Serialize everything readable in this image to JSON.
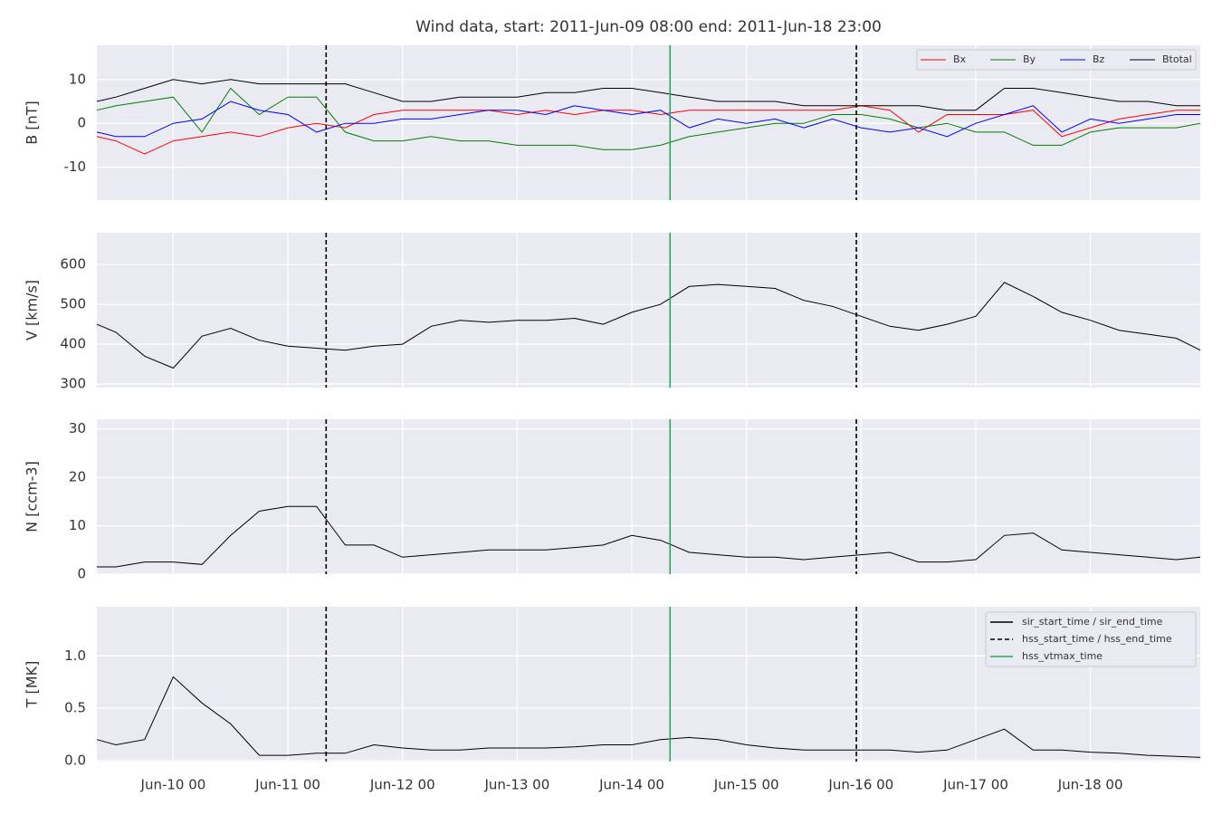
{
  "chart_data": [
    {
      "type": "line",
      "title": "Wind data, start: 2011-Jun-09 08:00  end: 2011-Jun-18 23:00",
      "ylabel": "B [nT]",
      "x": [
        "Jun-09 08",
        "Jun-09 12",
        "Jun-09 18",
        "Jun-10 00",
        "Jun-10 06",
        "Jun-10 12",
        "Jun-10 18",
        "Jun-11 00",
        "Jun-11 06",
        "Jun-11 12",
        "Jun-11 18",
        "Jun-12 00",
        "Jun-12 06",
        "Jun-12 12",
        "Jun-12 18",
        "Jun-13 00",
        "Jun-13 06",
        "Jun-13 12",
        "Jun-13 18",
        "Jun-14 00",
        "Jun-14 06",
        "Jun-14 12",
        "Jun-14 18",
        "Jun-15 00",
        "Jun-15 06",
        "Jun-15 12",
        "Jun-15 18",
        "Jun-16 00",
        "Jun-16 06",
        "Jun-16 12",
        "Jun-16 18",
        "Jun-17 00",
        "Jun-17 06",
        "Jun-17 12",
        "Jun-17 18",
        "Jun-18 00",
        "Jun-18 06",
        "Jun-18 12",
        "Jun-18 18",
        "Jun-18 23"
      ],
      "xlim": [
        "Jun-09 08",
        "Jun-18 23"
      ],
      "ylim": [
        -17.5,
        17.8
      ],
      "yticks": [
        -10,
        0,
        10
      ],
      "grid": true,
      "legend": "upper right",
      "series": [
        {
          "name": "Bx",
          "color": "#ff0000",
          "values": [
            -3,
            -4,
            -7,
            -4,
            -3,
            -2,
            -3,
            -1,
            0,
            -1,
            2,
            3,
            3,
            3,
            3,
            2,
            3,
            2,
            3,
            3,
            2,
            3,
            3,
            3,
            3,
            3,
            3,
            4,
            3,
            -2,
            2,
            2,
            2,
            3,
            -3,
            -1,
            1,
            2,
            3,
            3
          ]
        },
        {
          "name": "By",
          "color": "#008000",
          "values": [
            3,
            4,
            5,
            6,
            -2,
            8,
            2,
            6,
            6,
            -2,
            -4,
            -4,
            -3,
            -4,
            -4,
            -5,
            -5,
            -5,
            -6,
            -6,
            -5,
            -3,
            -2,
            -1,
            0,
            0,
            2,
            2,
            1,
            -1,
            0,
            -2,
            -2,
            -5,
            -5,
            -2,
            -1,
            -1,
            -1,
            0
          ]
        },
        {
          "name": "Bz",
          "color": "#0000ff",
          "values": [
            -2,
            -3,
            -3,
            0,
            1,
            5,
            3,
            2,
            -2,
            0,
            0,
            1,
            1,
            2,
            3,
            3,
            2,
            4,
            3,
            2,
            3,
            -1,
            1,
            0,
            1,
            -1,
            1,
            -1,
            -2,
            -1,
            -3,
            0,
            2,
            4,
            -2,
            1,
            0,
            1,
            2,
            2
          ]
        },
        {
          "name": "Btotal",
          "color": "#000000",
          "values": [
            5,
            6,
            8,
            10,
            9,
            10,
            9,
            9,
            9,
            9,
            7,
            5,
            5,
            6,
            6,
            6,
            7,
            7,
            8,
            8,
            7,
            6,
            5,
            5,
            5,
            4,
            4,
            4,
            4,
            4,
            3,
            3,
            8,
            8,
            7,
            6,
            5,
            5,
            4,
            4
          ]
        }
      ]
    },
    {
      "type": "line",
      "ylabel": "V [km/s]",
      "x": [
        "Jun-09 08",
        "Jun-09 12",
        "Jun-09 18",
        "Jun-10 00",
        "Jun-10 06",
        "Jun-10 12",
        "Jun-10 18",
        "Jun-11 00",
        "Jun-11 06",
        "Jun-11 12",
        "Jun-11 18",
        "Jun-12 00",
        "Jun-12 06",
        "Jun-12 12",
        "Jun-12 18",
        "Jun-13 00",
        "Jun-13 06",
        "Jun-13 12",
        "Jun-13 18",
        "Jun-14 00",
        "Jun-14 06",
        "Jun-14 12",
        "Jun-14 18",
        "Jun-15 00",
        "Jun-15 06",
        "Jun-15 12",
        "Jun-15 18",
        "Jun-16 00",
        "Jun-16 06",
        "Jun-16 12",
        "Jun-16 18",
        "Jun-17 00",
        "Jun-17 06",
        "Jun-17 12",
        "Jun-17 18",
        "Jun-18 00",
        "Jun-18 06",
        "Jun-18 12",
        "Jun-18 18",
        "Jun-18 23"
      ],
      "xlim": [
        "Jun-09 08",
        "Jun-18 23"
      ],
      "ylim": [
        291,
        680
      ],
      "yticks": [
        300,
        400,
        500,
        600
      ],
      "grid": true,
      "series": [
        {
          "color": "#000000",
          "values": [
            450,
            430,
            370,
            340,
            420,
            440,
            410,
            395,
            390,
            385,
            395,
            400,
            445,
            460,
            455,
            460,
            460,
            465,
            450,
            480,
            500,
            545,
            550,
            545,
            540,
            510,
            495,
            470,
            445,
            435,
            450,
            470,
            555,
            520,
            480,
            460,
            435,
            425,
            415,
            385
          ]
        }
      ]
    },
    {
      "type": "line",
      "ylabel": "N [ccm-3]",
      "x": [
        "Jun-09 08",
        "Jun-09 12",
        "Jun-09 18",
        "Jun-10 00",
        "Jun-10 06",
        "Jun-10 12",
        "Jun-10 18",
        "Jun-11 00",
        "Jun-11 06",
        "Jun-11 12",
        "Jun-11 18",
        "Jun-12 00",
        "Jun-12 06",
        "Jun-12 12",
        "Jun-12 18",
        "Jun-13 00",
        "Jun-13 06",
        "Jun-13 12",
        "Jun-13 18",
        "Jun-14 00",
        "Jun-14 06",
        "Jun-14 12",
        "Jun-14 18",
        "Jun-15 00",
        "Jun-15 06",
        "Jun-15 12",
        "Jun-15 18",
        "Jun-16 00",
        "Jun-16 06",
        "Jun-16 12",
        "Jun-16 18",
        "Jun-17 00",
        "Jun-17 06",
        "Jun-17 12",
        "Jun-17 18",
        "Jun-18 00",
        "Jun-18 06",
        "Jun-18 12",
        "Jun-18 18",
        "Jun-18 23"
      ],
      "xlim": [
        "Jun-09 08",
        "Jun-18 23"
      ],
      "ylim": [
        0,
        32
      ],
      "yticks": [
        0,
        10,
        20,
        30
      ],
      "grid": true,
      "series": [
        {
          "color": "#000000",
          "values": [
            1.5,
            1.5,
            2.5,
            2.5,
            2,
            8,
            13,
            14,
            14,
            6,
            6,
            3.5,
            4,
            4.5,
            5,
            5,
            5,
            5.5,
            6,
            8,
            7,
            4.5,
            4,
            3.5,
            3.5,
            3,
            3.5,
            4,
            4.5,
            2.5,
            2.5,
            3,
            8,
            8.5,
            5,
            4.5,
            4,
            3.5,
            3,
            3.5
          ]
        }
      ]
    },
    {
      "type": "line",
      "ylabel": "T [MK]",
      "x": [
        "Jun-09 08",
        "Jun-09 12",
        "Jun-09 18",
        "Jun-10 00",
        "Jun-10 06",
        "Jun-10 12",
        "Jun-10 18",
        "Jun-11 00",
        "Jun-11 06",
        "Jun-11 12",
        "Jun-11 18",
        "Jun-12 00",
        "Jun-12 06",
        "Jun-12 12",
        "Jun-12 18",
        "Jun-13 00",
        "Jun-13 06",
        "Jun-13 12",
        "Jun-13 18",
        "Jun-14 00",
        "Jun-14 06",
        "Jun-14 12",
        "Jun-14 18",
        "Jun-15 00",
        "Jun-15 06",
        "Jun-15 12",
        "Jun-15 18",
        "Jun-16 00",
        "Jun-16 06",
        "Jun-16 12",
        "Jun-16 18",
        "Jun-17 00",
        "Jun-17 06",
        "Jun-17 12",
        "Jun-17 18",
        "Jun-18 00",
        "Jun-18 06",
        "Jun-18 12",
        "Jun-18 18",
        "Jun-18 23"
      ],
      "xlim": [
        "Jun-09 08",
        "Jun-18 23"
      ],
      "ylim": [
        -0.01,
        1.47
      ],
      "yticks": [
        {
          "value": 0,
          "label": "0.0"
        },
        {
          "value": 0.5,
          "label": "0.5"
        },
        {
          "value": 1,
          "label": "1.0"
        }
      ],
      "grid": true,
      "xticks": [
        "Jun-10 00",
        "Jun-11 00",
        "Jun-12 00",
        "Jun-13 00",
        "Jun-14 00",
        "Jun-15 00",
        "Jun-16 00",
        "Jun-17 00",
        "Jun-18 00"
      ],
      "legend": "upper right",
      "series": [
        {
          "color": "#000000",
          "values": [
            0.2,
            0.15,
            0.2,
            0.8,
            0.55,
            0.35,
            0.05,
            0.05,
            0.07,
            0.07,
            0.15,
            0.12,
            0.1,
            0.1,
            0.12,
            0.12,
            0.12,
            0.13,
            0.15,
            0.15,
            0.2,
            0.22,
            0.2,
            0.15,
            0.12,
            0.1,
            0.1,
            0.1,
            0.1,
            0.08,
            0.1,
            0.2,
            0.3,
            0.1,
            0.1,
            0.08,
            0.07,
            0.05,
            0.04,
            0.03
          ]
        }
      ],
      "markers": [
        {
          "name": "sir_start_time / sir_end_time",
          "color": "#000000",
          "dashed": false,
          "times": []
        },
        {
          "name": "hss_start_time / hss_end_time",
          "color": "#000000",
          "dashed": true,
          "times": [
            "Jun-11 08",
            "Jun-15 23"
          ]
        },
        {
          "name": "hss_vtmax_time",
          "color": "#2ca85a",
          "dashed": false,
          "times": [
            "Jun-14 08"
          ]
        }
      ]
    }
  ]
}
